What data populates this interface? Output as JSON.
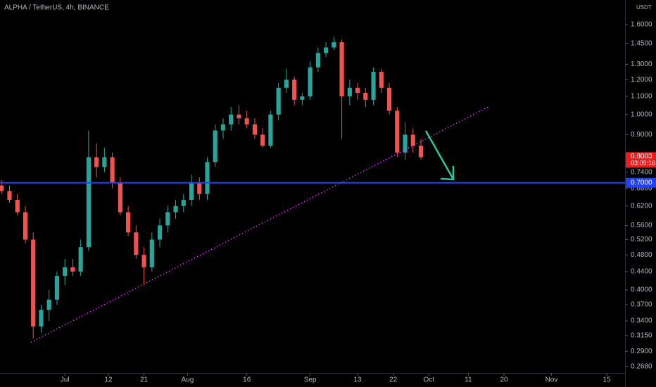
{
  "chart_data": {
    "type": "candlestick",
    "title": "ALPHA / TetherUS, 4h, BINANCE",
    "currency": "USDT",
    "log_scale": true,
    "up_color": "#26a69a",
    "down_color": "#ef5350",
    "x": [
      -16,
      -14,
      -12,
      -10,
      -8,
      -6,
      -4,
      -2,
      0,
      2,
      4,
      6,
      8,
      10,
      12,
      14,
      16,
      18,
      20,
      22,
      24,
      26,
      28,
      30,
      32,
      34,
      36,
      38,
      40,
      42,
      44,
      46,
      48,
      50,
      52,
      54,
      56,
      58,
      60,
      62,
      64,
      66,
      68,
      70,
      72,
      74,
      76,
      78,
      80,
      82,
      84,
      86,
      88,
      90
    ],
    "open": [
      0.69,
      0.67,
      0.64,
      0.6,
      0.52,
      0.33,
      0.36,
      0.38,
      0.43,
      0.45,
      0.44,
      0.5,
      0.8,
      0.76,
      0.8,
      0.7,
      0.6,
      0.54,
      0.48,
      0.45,
      0.52,
      0.56,
      0.6,
      0.62,
      0.64,
      0.7,
      0.66,
      0.78,
      0.92,
      0.95,
      1.0,
      0.98,
      0.95,
      0.9,
      0.85,
      1.0,
      1.15,
      1.2,
      1.08,
      1.1,
      1.28,
      1.38,
      1.42,
      1.46,
      1.1,
      1.15,
      1.12,
      1.08,
      1.25,
      1.15,
      1.02,
      0.82,
      0.9,
      0.85
    ],
    "high": [
      0.71,
      0.69,
      0.66,
      0.62,
      0.54,
      0.37,
      0.4,
      0.44,
      0.47,
      0.47,
      0.52,
      0.92,
      0.86,
      0.84,
      0.82,
      0.72,
      0.62,
      0.56,
      0.5,
      0.54,
      0.58,
      0.62,
      0.64,
      0.66,
      0.73,
      0.72,
      0.8,
      0.95,
      0.98,
      1.04,
      1.05,
      1.02,
      0.98,
      0.93,
      1.02,
      1.18,
      1.27,
      1.22,
      1.12,
      1.32,
      1.42,
      1.46,
      1.5,
      1.48,
      1.2,
      1.18,
      1.15,
      1.28,
      1.27,
      1.18,
      1.04,
      0.96,
      0.93,
      0.88
    ],
    "low": [
      0.66,
      0.63,
      0.59,
      0.51,
      0.31,
      0.32,
      0.34,
      0.37,
      0.41,
      0.43,
      0.43,
      0.49,
      0.72,
      0.74,
      0.68,
      0.59,
      0.53,
      0.47,
      0.41,
      0.44,
      0.5,
      0.54,
      0.58,
      0.6,
      0.62,
      0.64,
      0.64,
      0.76,
      0.88,
      0.92,
      0.95,
      0.93,
      0.88,
      0.84,
      0.84,
      0.97,
      1.12,
      1.05,
      1.05,
      1.08,
      1.25,
      1.35,
      1.4,
      0.88,
      1.05,
      1.08,
      1.04,
      1.05,
      1.12,
      1.0,
      0.8,
      0.79,
      0.82,
      0.79
    ],
    "close": [
      0.67,
      0.64,
      0.6,
      0.52,
      0.33,
      0.36,
      0.38,
      0.43,
      0.45,
      0.44,
      0.5,
      0.8,
      0.76,
      0.8,
      0.7,
      0.6,
      0.54,
      0.48,
      0.45,
      0.52,
      0.56,
      0.6,
      0.62,
      0.64,
      0.7,
      0.66,
      0.78,
      0.92,
      0.95,
      1.0,
      0.98,
      0.95,
      0.9,
      0.85,
      1.0,
      1.15,
      1.2,
      1.08,
      1.1,
      1.28,
      1.38,
      1.42,
      1.46,
      1.1,
      1.15,
      1.12,
      1.08,
      1.25,
      1.15,
      1.02,
      0.82,
      0.9,
      0.85,
      0.8
    ],
    "xlim": [
      -16.4,
      141.6
    ],
    "xticks": [
      {
        "value": 0,
        "label": "Jul"
      },
      {
        "value": 11,
        "label": "12"
      },
      {
        "value": 20,
        "label": "21"
      },
      {
        "value": 31,
        "label": "Aug"
      },
      {
        "value": 46,
        "label": "16"
      },
      {
        "value": 62,
        "label": "Sep"
      },
      {
        "value": 74,
        "label": "13"
      },
      {
        "value": 83,
        "label": "22"
      },
      {
        "value": 92,
        "label": "Oct"
      },
      {
        "value": 102,
        "label": "11"
      },
      {
        "value": 111,
        "label": "20"
      },
      {
        "value": 123,
        "label": "Nov"
      },
      {
        "value": 137,
        "label": "15"
      }
    ],
    "ylim": [
      0.259,
      1.82
    ],
    "yticks": [
      {
        "value": 1.6,
        "label": "1.6000"
      },
      {
        "value": 1.45,
        "label": "1.4500"
      },
      {
        "value": 1.3,
        "label": "1.3000"
      },
      {
        "value": 1.2,
        "label": "1.2000"
      },
      {
        "value": 1.1,
        "label": "1.1000"
      },
      {
        "value": 1.0,
        "label": "1.0000"
      },
      {
        "value": 0.9,
        "label": "0.9000"
      },
      {
        "value": 0.74,
        "label": "0.7400"
      },
      {
        "value": 0.68,
        "label": "0.6800"
      },
      {
        "value": 0.62,
        "label": "0.6200"
      },
      {
        "value": 0.56,
        "label": "0.5600"
      },
      {
        "value": 0.52,
        "label": "0.5200"
      },
      {
        "value": 0.48,
        "label": "0.4800"
      },
      {
        "value": 0.44,
        "label": "0.4400"
      },
      {
        "value": 0.4,
        "label": "0.4000"
      },
      {
        "value": 0.37,
        "label": "0.3700"
      },
      {
        "value": 0.34,
        "label": "0.3400"
      },
      {
        "value": 0.315,
        "label": "0.3150"
      },
      {
        "value": 0.29,
        "label": "0.2900"
      },
      {
        "value": 0.268,
        "label": "0.2680"
      }
    ],
    "trendline": {
      "x": [
        -8.6,
        107.4
      ],
      "y": [
        0.304,
        1.045
      ],
      "color": "#e040fb"
    },
    "hline": {
      "value": 0.7,
      "label": "0.7000",
      "color": "#1e40ff"
    },
    "last_price": {
      "value": 0.8003,
      "label": "0.8003",
      "countdown": "03:09:16",
      "color": "#f01a1a"
    }
  }
}
